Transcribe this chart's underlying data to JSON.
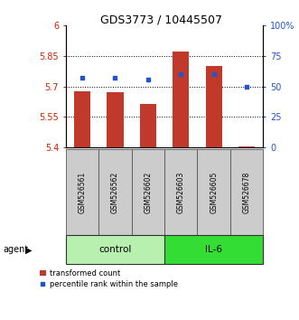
{
  "title": "GDS3773 / 10445507",
  "samples": [
    "GSM526561",
    "GSM526562",
    "GSM526602",
    "GSM526603",
    "GSM526605",
    "GSM526678"
  ],
  "groups": [
    "control",
    "control",
    "control",
    "IL-6",
    "IL-6",
    "IL-6"
  ],
  "bar_values": [
    5.675,
    5.67,
    5.615,
    5.87,
    5.8,
    5.405
  ],
  "percentile_values": [
    57,
    57,
    56,
    60,
    60,
    50
  ],
  "ylim_left": [
    5.4,
    6.0
  ],
  "ylim_right": [
    0,
    100
  ],
  "yticks_left": [
    5.4,
    5.55,
    5.7,
    5.85,
    6.0
  ],
  "yticks_right": [
    0,
    25,
    50,
    75,
    100
  ],
  "ytick_labels_left": [
    "5.4",
    "5.55",
    "5.7",
    "5.85",
    "6"
  ],
  "ytick_labels_right": [
    "0",
    "25",
    "50",
    "75",
    "100%"
  ],
  "bar_color": "#c0392b",
  "dot_color": "#2255cc",
  "bar_width": 0.5,
  "group_colors": {
    "control": "#b8f0b0",
    "IL-6": "#33dd33"
  },
  "left_tick_color": "#cc2200",
  "right_tick_color": "#2255cc",
  "agent_label": "agent",
  "legend_bar_label": "transformed count",
  "legend_dot_label": "percentile rank within the sample",
  "bar_bottom": 5.4,
  "grid_dotted_lines": [
    5.55,
    5.7,
    5.85
  ],
  "sample_box_color": "#cccccc",
  "sample_box_edge": "#888888"
}
